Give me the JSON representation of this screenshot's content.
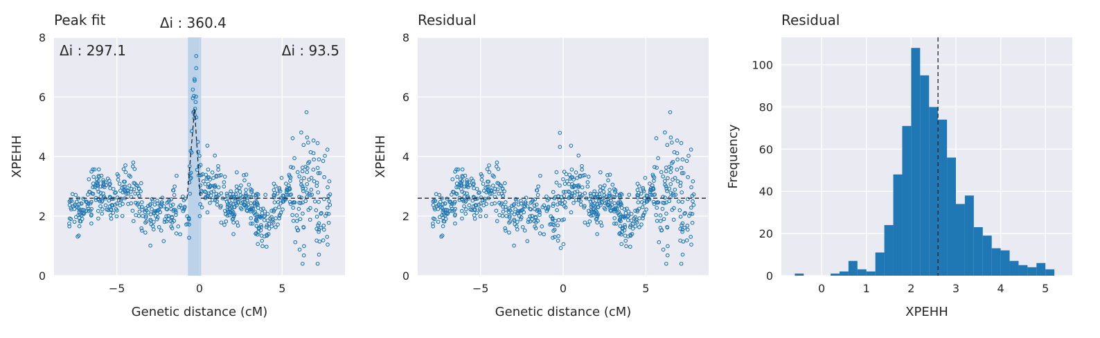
{
  "colors": {
    "panel_bg": "#eaeaf2",
    "grid": "#ffffff",
    "point_edge": "#1f77b4",
    "bar": "#1f77b4",
    "shade": "#a6c8e6",
    "guide": "#222222"
  },
  "chart_data": [
    {
      "type": "scatter",
      "title": "Peak fit",
      "xlabel": "Genetic distance (cM)",
      "ylabel": "XPEHH",
      "xlim": [
        -8.8,
        8.8
      ],
      "ylim": [
        0,
        8
      ],
      "xticks": [
        -5,
        0,
        5
      ],
      "xtick_labels": [
        "−5",
        "0",
        "5"
      ],
      "yticks": [
        0,
        2,
        4,
        6,
        8
      ],
      "ytick_labels": [
        "0",
        "2",
        "4",
        "6",
        "8"
      ],
      "grid": true,
      "baseline": 2.6,
      "peak_center": -0.3,
      "peak_height": 5.6,
      "peak_region": [
        -0.7,
        0.1
      ],
      "annotations": [
        {
          "text": "Δi : 360.4",
          "position": "above-center"
        },
        {
          "text": "Δi : 297.1",
          "position": "top-left"
        },
        {
          "text": "Δi : 93.5",
          "position": "top-right"
        }
      ],
      "point_summary": {
        "n_points": 760,
        "x_range": [
          -7.9,
          7.9
        ],
        "typical_y_range": [
          1.4,
          4.7
        ],
        "peak_cluster": {
          "x": [
            -0.6,
            0.1
          ],
          "y": [
            2.5,
            7.7
          ]
        },
        "right_cluster": {
          "x": [
            5.5,
            7.9
          ],
          "y": [
            0.6,
            5.5
          ]
        }
      },
      "legend": "none"
    },
    {
      "type": "scatter",
      "title": "Residual",
      "xlabel": "Genetic distance (cM)",
      "ylabel": "XPEHH",
      "xlim": [
        -8.8,
        8.8
      ],
      "ylim": [
        0,
        8
      ],
      "xticks": [
        -5,
        0,
        5
      ],
      "xtick_labels": [
        "−5",
        "0",
        "5"
      ],
      "yticks": [
        0,
        2,
        4,
        6,
        8
      ],
      "ytick_labels": [
        "0",
        "2",
        "4",
        "6",
        "8"
      ],
      "grid": true,
      "baseline": 2.6,
      "point_summary": {
        "n_points": 760,
        "x_range": [
          -7.9,
          7.9
        ],
        "typical_y_range": [
          1.4,
          4.7
        ],
        "dip_cluster": {
          "x": [
            -0.6,
            0.1
          ],
          "y": [
            0.4,
            5.1
          ]
        },
        "right_cluster": {
          "x": [
            5.5,
            7.9
          ],
          "y": [
            0.6,
            5.5
          ]
        }
      },
      "legend": "none"
    },
    {
      "type": "bar",
      "subtype": "histogram",
      "title": "Residual",
      "xlabel": "XPEHH",
      "ylabel": "Frequency",
      "xlim": [
        -0.9,
        5.6
      ],
      "ylim": [
        0,
        113
      ],
      "xticks": [
        0,
        1,
        2,
        3,
        4,
        5
      ],
      "xtick_labels": [
        "0",
        "1",
        "2",
        "3",
        "4",
        "5"
      ],
      "yticks": [
        0,
        20,
        40,
        60,
        80,
        100
      ],
      "ytick_labels": [
        "0",
        "20",
        "40",
        "60",
        "80",
        "100"
      ],
      "grid": true,
      "bin_start": -0.6,
      "bin_width": 0.2,
      "values": [
        1,
        0,
        0,
        0,
        1,
        2,
        7,
        3,
        2,
        11,
        24,
        48,
        71,
        108,
        95,
        80,
        74,
        56,
        34,
        38,
        23,
        19,
        13,
        12,
        7,
        5,
        4,
        6,
        3
      ],
      "vline": 2.6,
      "legend": "none"
    }
  ]
}
